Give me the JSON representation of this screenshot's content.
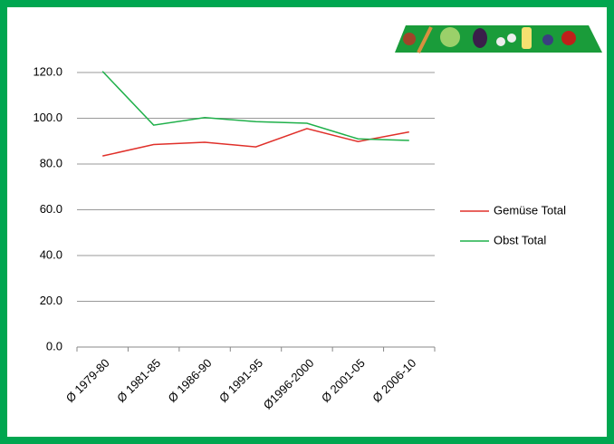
{
  "chart_data": {
    "type": "line",
    "categories": [
      "Ø 1979-80",
      "Ø 1981-85",
      "Ø 1986-90",
      "Ø 1991-95",
      "Ø1996-2000",
      "Ø 2001-05",
      "Ø 2006-10"
    ],
    "series": [
      {
        "name": "Gemüse Total",
        "color": "#e0302a",
        "values": [
          83.5,
          88.5,
          89.5,
          87.5,
          95.5,
          89.8,
          94.0
        ]
      },
      {
        "name": "Obst Total",
        "color": "#1fb04a",
        "values": [
          120.5,
          97.0,
          100.3,
          98.5,
          97.8,
          91.0,
          90.3
        ]
      }
    ],
    "ylim": [
      0,
      120
    ],
    "yticks": [
      {
        "value": 0,
        "label": "0.0"
      },
      {
        "value": 20,
        "label": "20.0"
      },
      {
        "value": 40,
        "label": "40.0"
      },
      {
        "value": 60,
        "label": "60.0"
      },
      {
        "value": 80,
        "label": "80.0"
      },
      {
        "value": 100,
        "label": "100.0"
      },
      {
        "value": 120,
        "label": "120.0"
      }
    ],
    "grid": true,
    "legend": "right"
  }
}
